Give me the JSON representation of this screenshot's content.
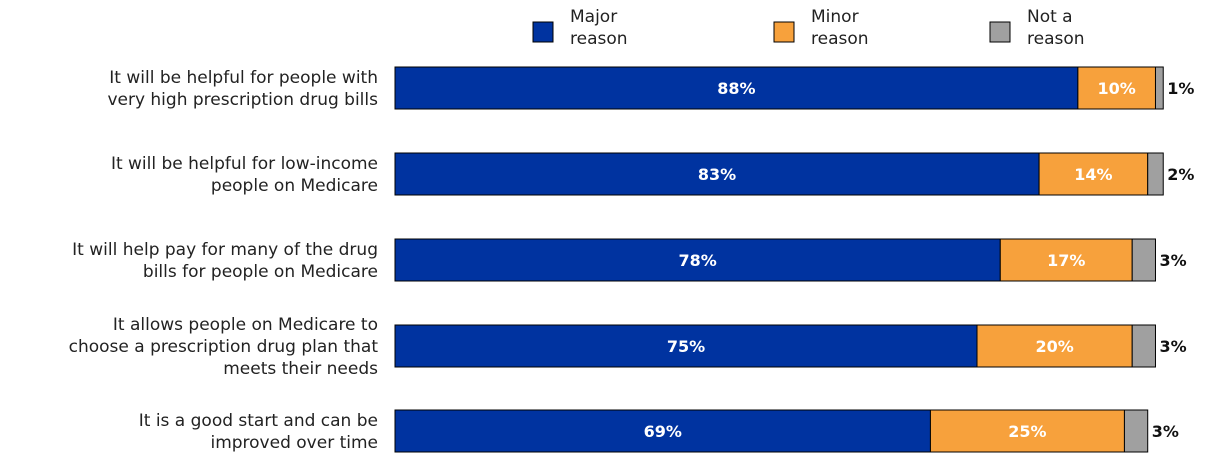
{
  "chart_data": {
    "type": "bar",
    "orientation": "horizontal",
    "stacked": true,
    "legend_position": "top",
    "grid": false,
    "categories": [
      [
        "It will be helpful for people with",
        "very high prescription drug bills"
      ],
      [
        "It will be helpful for low-income",
        "people on Medicare"
      ],
      [
        "It will help pay for many of the drug",
        "bills for people on Medicare"
      ],
      [
        "It allows people on Medicare to",
        "choose a prescription drug plan that",
        "meets their needs"
      ],
      [
        "It is a good start and can be",
        "improved over time"
      ]
    ],
    "series": [
      {
        "name": [
          "Major",
          "reason"
        ],
        "color": "#0033a0",
        "values": [
          88,
          83,
          78,
          75,
          69
        ],
        "labels": [
          "88%",
          "83%",
          "78%",
          "75%",
          "69%"
        ]
      },
      {
        "name": [
          "Minor",
          "reason"
        ],
        "color": "#f7a13c",
        "values": [
          10,
          14,
          17,
          20,
          25
        ],
        "labels": [
          "10%",
          "14%",
          "17%",
          "20%",
          "25%"
        ]
      },
      {
        "name": [
          "Not a",
          "reason"
        ],
        "color": "#a0a0a0",
        "values": [
          1,
          2,
          3,
          3,
          3
        ],
        "labels": [
          "1%",
          "2%",
          "3%",
          "3%",
          "3%"
        ]
      }
    ]
  }
}
